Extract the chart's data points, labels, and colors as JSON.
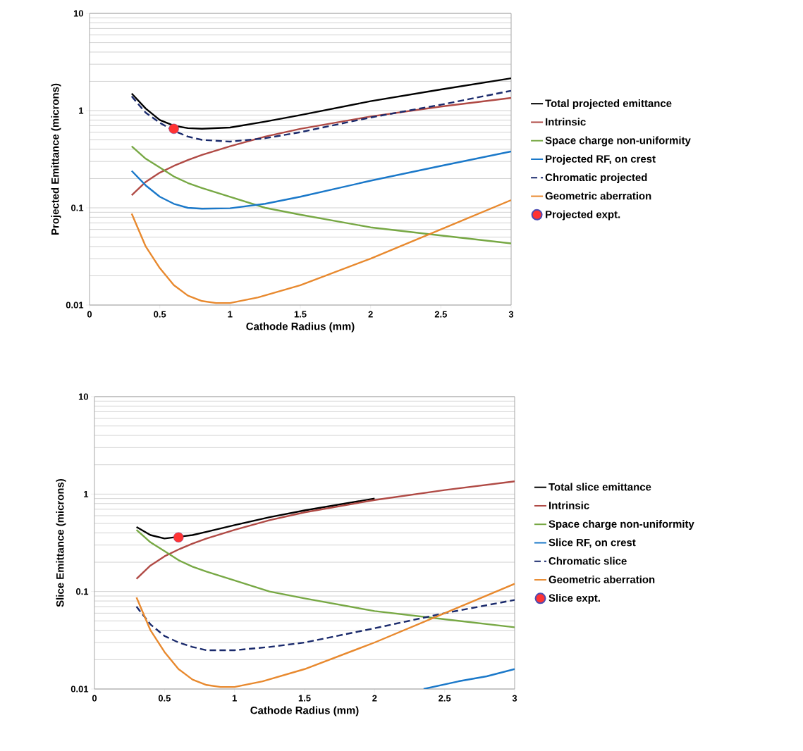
{
  "chart_data": [
    {
      "type": "line",
      "xlabel": "Cathode  Radius  (mm)",
      "ylabel": "Projected Emittance  (microns)",
      "xlim": [
        0,
        3
      ],
      "ylim": [
        0.01,
        10
      ],
      "xticks": [
        0,
        0.5,
        1,
        1.5,
        2,
        2.5,
        3
      ],
      "yticks": [
        0.01,
        0.1,
        1,
        10
      ],
      "log": "y",
      "grid": "y",
      "legend": "right",
      "series": [
        {
          "name": "Total projected emittance",
          "color": "#000000",
          "line_style": "solid",
          "x": [
            0.3,
            0.4,
            0.5,
            0.6,
            0.7,
            0.8,
            1.0,
            1.25,
            1.5,
            2.0,
            2.5,
            3.0
          ],
          "values": [
            1.5,
            1.05,
            0.8,
            0.7,
            0.66,
            0.65,
            0.67,
            0.77,
            0.9,
            1.25,
            1.65,
            2.15
          ]
        },
        {
          "name": "Intrinsic",
          "color": "#b04a45",
          "line_style": "solid",
          "x": [
            0.3,
            0.4,
            0.5,
            0.6,
            0.7,
            0.8,
            1.0,
            1.25,
            1.5,
            2.0,
            2.5,
            3.0
          ],
          "values": [
            0.135,
            0.185,
            0.23,
            0.27,
            0.31,
            0.35,
            0.43,
            0.54,
            0.65,
            0.87,
            1.1,
            1.35
          ]
        },
        {
          "name": "Space charge non-uniformity",
          "color": "#77a844",
          "line_style": "solid",
          "x": [
            0.3,
            0.4,
            0.5,
            0.6,
            0.7,
            0.8,
            1.0,
            1.25,
            1.5,
            2.0,
            2.5,
            3.0
          ],
          "values": [
            0.43,
            0.32,
            0.26,
            0.21,
            0.18,
            0.16,
            0.13,
            0.1,
            0.085,
            0.063,
            0.052,
            0.043
          ]
        },
        {
          "name": "Projected RF, on crest",
          "color": "#1a78c9",
          "line_style": "solid",
          "x": [
            0.3,
            0.4,
            0.5,
            0.6,
            0.7,
            0.8,
            1.0,
            1.25,
            1.5,
            2.0,
            2.5,
            3.0
          ],
          "values": [
            0.24,
            0.17,
            0.13,
            0.11,
            0.1,
            0.098,
            0.099,
            0.11,
            0.13,
            0.19,
            0.27,
            0.38
          ]
        },
        {
          "name": "Chromatic projected",
          "color": "#1a2a6c",
          "line_style": "dashed",
          "x": [
            0.3,
            0.4,
            0.5,
            0.6,
            0.7,
            0.8,
            1.0,
            1.25,
            1.5,
            2.0,
            2.5,
            3.0
          ],
          "values": [
            1.4,
            0.95,
            0.75,
            0.62,
            0.54,
            0.5,
            0.48,
            0.52,
            0.6,
            0.85,
            1.15,
            1.6
          ]
        },
        {
          "name": "Geometric aberration",
          "color": "#e8892e",
          "line_style": "solid",
          "x": [
            0.3,
            0.4,
            0.5,
            0.6,
            0.7,
            0.8,
            0.9,
            1.0,
            1.2,
            1.5,
            2.0,
            2.5,
            3.0
          ],
          "values": [
            0.087,
            0.04,
            0.024,
            0.016,
            0.0125,
            0.011,
            0.0105,
            0.0105,
            0.012,
            0.016,
            0.03,
            0.06,
            0.12
          ]
        },
        {
          "name": "Projected expt.",
          "type": "scatter",
          "marker": "circle",
          "color": "#ff3333",
          "x": [
            0.6
          ],
          "values": [
            0.65
          ]
        }
      ]
    },
    {
      "type": "line",
      "xlabel": "Cathode  Radius  (mm)",
      "ylabel": "Slice Emittance  (microns)",
      "xlim": [
        0,
        3
      ],
      "ylim": [
        0.01,
        10
      ],
      "xticks": [
        0,
        0.5,
        1,
        1.5,
        2,
        2.5,
        3
      ],
      "yticks": [
        0.01,
        0.1,
        1,
        10
      ],
      "log": "y",
      "grid": "y",
      "legend": "right",
      "series": [
        {
          "name": "Total slice emittance",
          "color": "#000000",
          "line_style": "solid",
          "x": [
            0.3,
            0.4,
            0.5,
            0.6,
            0.7,
            0.8,
            1.0,
            1.25,
            1.5,
            2.0
          ],
          "values": [
            0.46,
            0.38,
            0.35,
            null,
            0.38,
            0.41,
            0.48,
            0.58,
            0.68,
            0.9
          ]
        },
        {
          "name": "Intrinsic",
          "color": "#b04a45",
          "line_style": "solid",
          "x": [
            0.3,
            0.4,
            0.5,
            0.6,
            0.7,
            0.8,
            1.0,
            1.25,
            1.5,
            2.0,
            2.5,
            3.0
          ],
          "values": [
            0.135,
            0.185,
            0.23,
            0.27,
            0.31,
            0.35,
            0.43,
            0.54,
            0.65,
            0.87,
            1.1,
            1.35
          ]
        },
        {
          "name": "Space charge non-uniformity",
          "color": "#77a844",
          "line_style": "solid",
          "x": [
            0.3,
            0.4,
            0.5,
            0.6,
            0.7,
            0.8,
            1.0,
            1.25,
            1.5,
            2.0,
            2.5,
            3.0
          ],
          "values": [
            0.43,
            0.32,
            0.26,
            0.21,
            0.18,
            0.16,
            0.13,
            0.1,
            0.085,
            0.063,
            0.052,
            0.043
          ]
        },
        {
          "name": "Slice RF, on crest",
          "color": "#1a78c9",
          "line_style": "solid",
          "x": [
            2.35,
            2.6,
            2.8,
            3.0
          ],
          "values": [
            0.01,
            0.012,
            0.0135,
            0.016
          ]
        },
        {
          "name": "Chromatic slice",
          "color": "#1a2a6c",
          "line_style": "dashed",
          "x": [
            0.3,
            0.4,
            0.5,
            0.6,
            0.7,
            0.8,
            1.0,
            1.25,
            1.5,
            2.0,
            2.5,
            3.0
          ],
          "values": [
            0.07,
            0.046,
            0.035,
            0.03,
            0.027,
            0.025,
            0.025,
            0.027,
            0.03,
            0.042,
            0.06,
            0.082
          ]
        },
        {
          "name": "Geometric aberration",
          "color": "#e8892e",
          "line_style": "solid",
          "x": [
            0.3,
            0.4,
            0.5,
            0.6,
            0.7,
            0.8,
            0.9,
            1.0,
            1.2,
            1.5,
            2.0,
            2.5,
            3.0
          ],
          "values": [
            0.087,
            0.04,
            0.024,
            0.016,
            0.0125,
            0.011,
            0.0105,
            0.0105,
            0.012,
            0.016,
            0.03,
            0.06,
            0.12
          ]
        },
        {
          "name": "Slice expt.",
          "type": "scatter",
          "marker": "circle",
          "color": "#ff3333",
          "x": [
            0.6
          ],
          "values": [
            0.36
          ]
        }
      ]
    }
  ]
}
